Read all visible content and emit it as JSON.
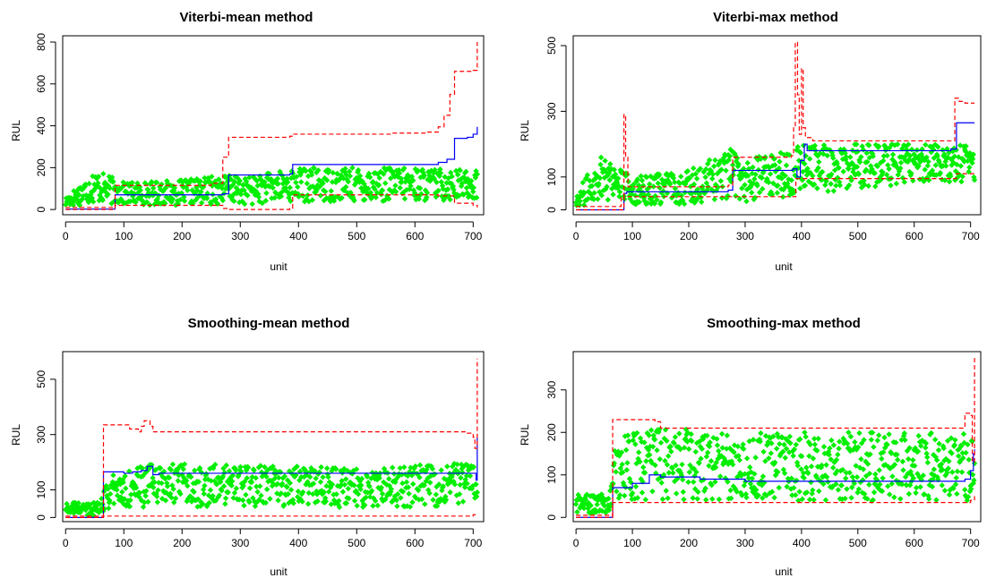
{
  "colors": {
    "points": "#00ee00",
    "mean_line": "#0000ff",
    "bounds": "#ff0000",
    "axes": "#000000"
  },
  "chart_data": [
    {
      "type": "line",
      "title": "Viterbi-mean method",
      "xlabel": "unit",
      "ylabel": "RUL",
      "xlim": [
        -5,
        718
      ],
      "ylim": [
        -25,
        830
      ],
      "xticks": [
        0,
        100,
        200,
        300,
        400,
        500,
        600,
        700
      ],
      "yticks": [
        0,
        200,
        400,
        600,
        800
      ],
      "grid": false,
      "series": [
        {
          "kind": "step",
          "role": "mean",
          "style": "solid",
          "x": [
            0,
            85,
            175,
            270,
            280,
            385,
            390,
            620,
            640,
            655,
            668,
            690,
            700,
            707
          ],
          "y": [
            2,
            70,
            70,
            75,
            165,
            170,
            215,
            215,
            225,
            240,
            340,
            345,
            360,
            395
          ]
        },
        {
          "kind": "step",
          "role": "upper",
          "style": "dashed",
          "x": [
            0,
            85,
            170,
            250,
            270,
            280,
            385,
            390,
            560,
            620,
            640,
            650,
            660,
            668,
            700,
            707
          ],
          "y": [
            10,
            115,
            115,
            125,
            250,
            345,
            350,
            360,
            365,
            370,
            395,
            450,
            550,
            660,
            665,
            800
          ]
        },
        {
          "kind": "step",
          "role": "lower",
          "style": "dashed",
          "x": [
            0,
            85,
            170,
            270,
            280,
            385,
            390,
            600,
            640,
            668,
            700,
            707
          ],
          "y": [
            0,
            20,
            20,
            5,
            0,
            5,
            70,
            70,
            65,
            30,
            20,
            10
          ]
        }
      ],
      "scatter": {
        "x_range": [
          0,
          707
        ],
        "envelope": {
          "x": [
            0,
            50,
            100,
            200,
            280,
            300,
            400,
            500,
            600,
            707
          ],
          "ymin": [
            0,
            0,
            0,
            0,
            0,
            0,
            5,
            5,
            10,
            20
          ],
          "ymax": [
            60,
            190,
            130,
            140,
            170,
            150,
            200,
            200,
            200,
            190
          ]
        },
        "count": 700
      }
    },
    {
      "type": "line",
      "title": "Viterbi-max method",
      "xlabel": "unit",
      "ylabel": "RUL",
      "xlim": [
        -5,
        718
      ],
      "ylim": [
        -15,
        530
      ],
      "xticks": [
        0,
        100,
        200,
        300,
        400,
        500,
        600,
        700
      ],
      "yticks": [
        0,
        100,
        300,
        500
      ],
      "grid": false,
      "series": [
        {
          "kind": "step",
          "role": "mean",
          "style": "solid",
          "x": [
            0,
            85,
            90,
            270,
            278,
            385,
            392,
            398,
            405,
            410,
            665,
            675,
            707
          ],
          "y": [
            0,
            50,
            55,
            60,
            120,
            125,
            100,
            150,
            200,
            180,
            185,
            265,
            265
          ]
        },
        {
          "kind": "step",
          "role": "upper",
          "style": "dashed",
          "x": [
            0,
            80,
            85,
            88,
            92,
            270,
            278,
            382,
            386,
            389,
            393,
            396,
            400,
            403,
            407,
            420,
            665,
            672,
            680,
            690,
            707
          ],
          "y": [
            10,
            40,
            290,
            160,
            70,
            75,
            160,
            165,
            250,
            510,
            350,
            230,
            430,
            250,
            220,
            210,
            210,
            340,
            330,
            325,
            325
          ]
        },
        {
          "kind": "step",
          "role": "lower",
          "style": "dashed",
          "x": [
            0,
            85,
            270,
            278,
            385,
            390,
            665,
            675,
            707
          ],
          "y": [
            0,
            40,
            40,
            40,
            40,
            95,
            95,
            110,
            110
          ]
        }
      ],
      "scatter": {
        "x_range": [
          0,
          707
        ],
        "envelope": {
          "x": [
            0,
            50,
            100,
            200,
            280,
            300,
            400,
            500,
            600,
            707
          ],
          "ymin": [
            0,
            0,
            0,
            0,
            0,
            0,
            20,
            40,
            60,
            60
          ],
          "ymax": [
            50,
            190,
            100,
            120,
            190,
            150,
            200,
            200,
            200,
            200
          ]
        },
        "count": 700
      }
    },
    {
      "type": "line",
      "title": "Smoothing-mean method",
      "xlabel": "unit",
      "ylabel": "RUL",
      "xlim": [
        -5,
        718
      ],
      "ylim": [
        -15,
        600
      ],
      "xticks": [
        0,
        100,
        200,
        300,
        400,
        500,
        600,
        700
      ],
      "yticks": [
        0,
        100,
        300,
        500
      ],
      "grid": false,
      "series": [
        {
          "kind": "step",
          "role": "mean",
          "style": "solid",
          "x": [
            0,
            65,
            100,
            115,
            130,
            140,
            150,
            160,
            700,
            705,
            707
          ],
          "y": [
            0,
            165,
            160,
            165,
            170,
            185,
            155,
            160,
            160,
            135,
            290
          ]
        },
        {
          "kind": "step",
          "role": "upper",
          "style": "dashed",
          "x": [
            0,
            65,
            110,
            125,
            130,
            135,
            145,
            150,
            180,
            690,
            700,
            703,
            707
          ],
          "y": [
            5,
            335,
            320,
            310,
            330,
            350,
            330,
            310,
            310,
            305,
            290,
            250,
            575
          ]
        },
        {
          "kind": "step",
          "role": "lower",
          "style": "dashed",
          "x": [
            0,
            65,
            700,
            707
          ],
          "y": [
            0,
            5,
            10,
            10
          ]
        }
      ],
      "scatter": {
        "x_range": [
          0,
          707
        ],
        "envelope": {
          "x": [
            0,
            60,
            70,
            150,
            300,
            500,
            707
          ],
          "ymin": [
            0,
            0,
            10,
            10,
            10,
            10,
            10
          ],
          "ymax": [
            55,
            55,
            150,
            195,
            190,
            180,
            200
          ]
        },
        "count": 700
      }
    },
    {
      "type": "line",
      "title": "Smoothing-max method",
      "xlabel": "unit",
      "ylabel": "RUL",
      "xlim": [
        -5,
        718
      ],
      "ylim": [
        -10,
        390
      ],
      "xticks": [
        0,
        100,
        200,
        300,
        400,
        500,
        600,
        700
      ],
      "yticks": [
        0,
        100,
        200,
        300
      ],
      "grid": false,
      "series": [
        {
          "kind": "step",
          "role": "mean",
          "style": "solid",
          "x": [
            0,
            65,
            100,
            130,
            150,
            220,
            300,
            690,
            700,
            705,
            707
          ],
          "y": [
            0,
            70,
            80,
            100,
            95,
            90,
            85,
            90,
            110,
            150,
            160
          ]
        },
        {
          "kind": "step",
          "role": "upper",
          "style": "dashed",
          "x": [
            0,
            65,
            140,
            150,
            680,
            690,
            700,
            703,
            707
          ],
          "y": [
            5,
            230,
            225,
            210,
            210,
            245,
            240,
            130,
            375
          ]
        },
        {
          "kind": "step",
          "role": "lower",
          "style": "dashed",
          "x": [
            0,
            65,
            700,
            707
          ],
          "y": [
            0,
            35,
            40,
            50
          ]
        }
      ],
      "scatter": {
        "x_range": [
          0,
          707
        ],
        "envelope": {
          "x": [
            0,
            60,
            70,
            150,
            300,
            500,
            707
          ],
          "ymin": [
            0,
            0,
            10,
            10,
            10,
            10,
            10
          ],
          "ymax": [
            55,
            55,
            190,
            210,
            200,
            200,
            200
          ]
        },
        "count": 700
      }
    }
  ]
}
